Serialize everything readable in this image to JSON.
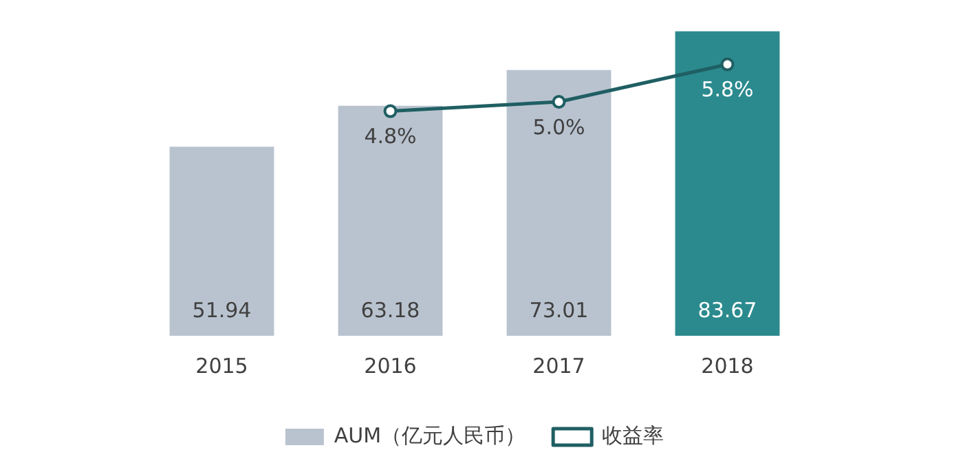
{
  "chart_data": {
    "type": "bar",
    "categories": [
      "2015",
      "2016",
      "2017",
      "2018"
    ],
    "series": [
      {
        "name": "AUM（亿元人民币）",
        "colors": [
          "#b9c3cf",
          "#b9c3cf",
          "#b9c3cf",
          "#2b8a8e"
        ],
        "values": [
          51.94,
          63.18,
          73.01,
          83.67
        ],
        "value_labels": [
          "51.94",
          "63.18",
          "73.01",
          "83.67"
        ]
      },
      {
        "name": "收益率",
        "type": "line",
        "axis": "y2",
        "color": "#1f5f63",
        "marker": "circle",
        "values": [
          null,
          4.8,
          5.0,
          5.8
        ],
        "value_labels": [
          null,
          "4.8%",
          "5.0%",
          "5.8%"
        ]
      }
    ],
    "grid": false,
    "legend": "bottom",
    "tick_labels": "x"
  }
}
